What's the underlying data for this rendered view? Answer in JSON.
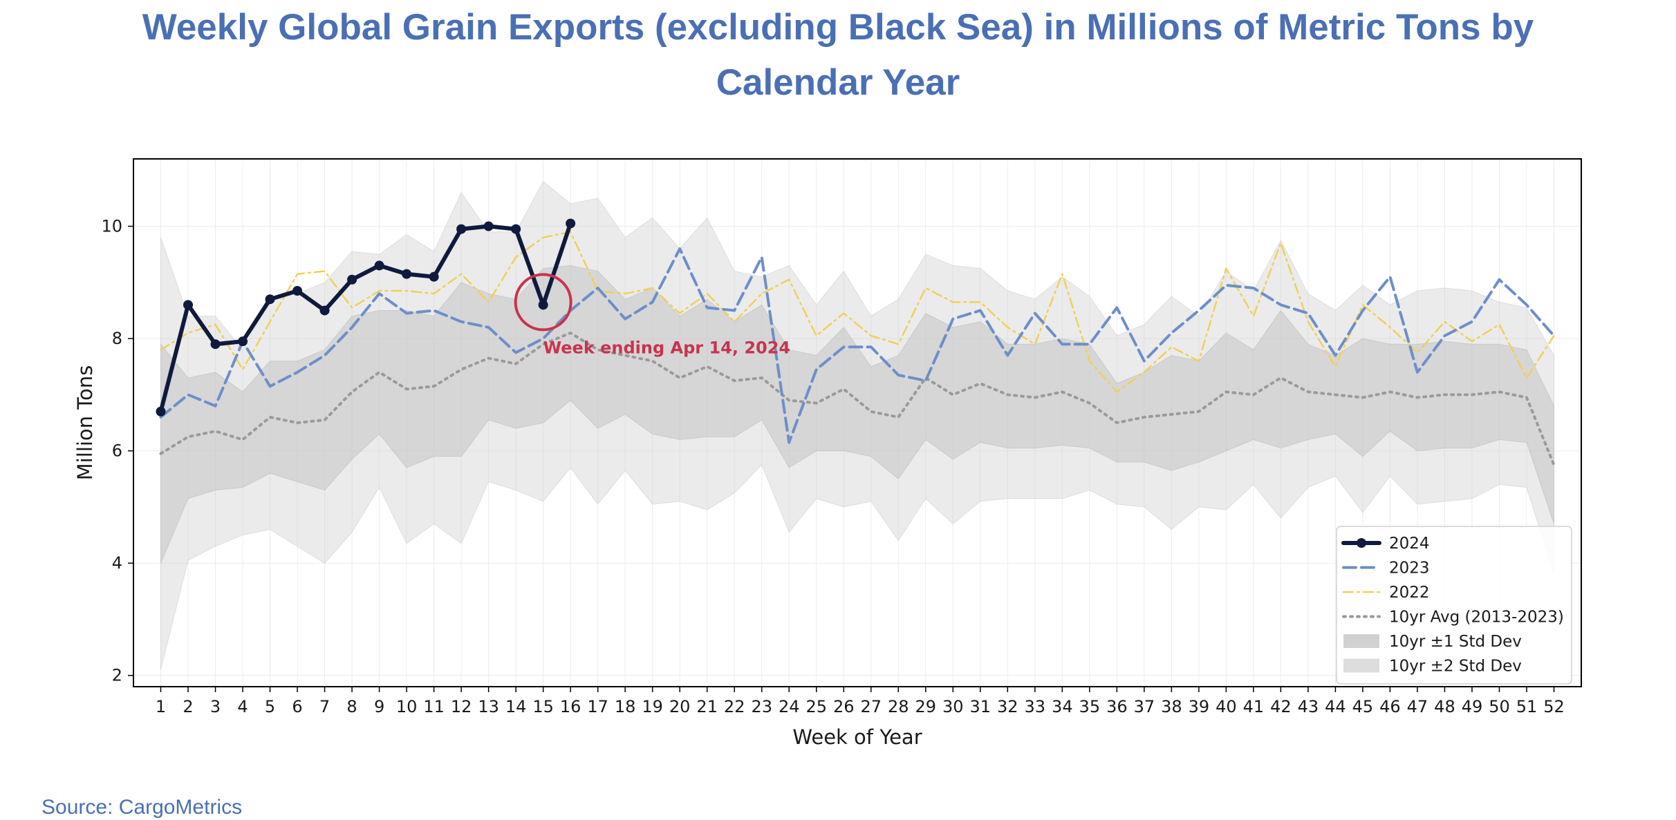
{
  "chart_data": {
    "type": "line",
    "title_line1": "Weekly Global Grain Exports (excluding Black Sea) in Millions of Metric Tons by",
    "title_line2": "Calendar Year",
    "xlabel": "Week of Year",
    "ylabel": "Million Tons",
    "xlim": [
      0,
      53
    ],
    "ylim": [
      1.8,
      11.2
    ],
    "yticks": [
      2,
      4,
      6,
      8,
      10
    ],
    "grid": true,
    "legend_position": "bottom-right",
    "weeks": [
      1,
      2,
      3,
      4,
      5,
      6,
      7,
      8,
      9,
      10,
      11,
      12,
      13,
      14,
      15,
      16,
      17,
      18,
      19,
      20,
      21,
      22,
      23,
      24,
      25,
      26,
      27,
      28,
      29,
      30,
      31,
      32,
      33,
      34,
      35,
      36,
      37,
      38,
      39,
      40,
      41,
      42,
      43,
      44,
      45,
      46,
      47,
      48,
      49,
      50,
      51,
      52
    ],
    "series": [
      {
        "name": "2024",
        "color": "#0f1a3c",
        "values": [
          6.7,
          8.6,
          7.9,
          7.95,
          8.7,
          8.85,
          8.5,
          9.05,
          9.3,
          9.15,
          9.1,
          9.95,
          10.0,
          9.95,
          8.6,
          10.05
        ]
      },
      {
        "name": "2023",
        "color": "#6d8fc8",
        "values": [
          6.6,
          7.0,
          6.8,
          7.95,
          7.15,
          7.4,
          7.7,
          8.2,
          8.8,
          8.45,
          8.5,
          8.3,
          8.2,
          7.75,
          8.0,
          8.5,
          8.9,
          8.35,
          8.65,
          9.6,
          8.55,
          8.5,
          9.45,
          6.15,
          7.45,
          7.85,
          7.85,
          7.35,
          7.25,
          8.35,
          8.5,
          7.7,
          8.45,
          7.9,
          7.9,
          8.55,
          7.6,
          8.1,
          8.5,
          8.95,
          8.9,
          8.6,
          8.45,
          7.7,
          8.5,
          9.1,
          7.4,
          8.05,
          8.3,
          9.05,
          8.6,
          8.05
        ]
      },
      {
        "name": "2022",
        "color": "#f2cf5b",
        "values": [
          7.8,
          8.1,
          8.25,
          7.45,
          8.3,
          9.15,
          9.2,
          8.55,
          8.85,
          8.85,
          8.8,
          9.15,
          8.65,
          9.45,
          9.8,
          9.9,
          8.85,
          8.8,
          8.9,
          8.45,
          8.8,
          8.3,
          8.8,
          9.05,
          8.05,
          8.45,
          8.05,
          7.9,
          8.9,
          8.65,
          8.65,
          8.2,
          7.9,
          9.15,
          7.6,
          7.05,
          7.4,
          7.85,
          7.6,
          9.25,
          8.4,
          9.7,
          8.3,
          7.5,
          8.6,
          8.2,
          7.75,
          8.3,
          7.95,
          8.25,
          7.3,
          8.05
        ]
      },
      {
        "name": "10yr Avg (2013-2023)",
        "color": "#9a9a9a",
        "values": [
          5.95,
          6.25,
          6.35,
          6.2,
          6.6,
          6.5,
          6.55,
          7.05,
          7.4,
          7.1,
          7.15,
          7.45,
          7.65,
          7.55,
          7.9,
          8.1,
          7.8,
          7.7,
          7.6,
          7.3,
          7.5,
          7.25,
          7.3,
          6.9,
          6.85,
          7.1,
          6.7,
          6.6,
          7.3,
          7.0,
          7.2,
          7.0,
          6.95,
          7.05,
          6.85,
          6.5,
          6.6,
          6.65,
          6.7,
          7.05,
          7.0,
          7.3,
          7.05,
          7.0,
          6.95,
          7.05,
          6.95,
          7.0,
          7.0,
          7.05,
          6.95,
          5.75
        ]
      }
    ],
    "bands": [
      {
        "name": "10yr ±1 Std Dev",
        "color": "#bdbdbd",
        "opacity": 0.45,
        "upper": [
          7.9,
          7.3,
          7.4,
          7.05,
          7.6,
          7.6,
          7.8,
          8.4,
          8.5,
          8.5,
          8.4,
          9.0,
          8.8,
          8.7,
          9.25,
          9.3,
          9.2,
          8.7,
          8.9,
          8.4,
          8.7,
          8.3,
          8.6,
          7.8,
          7.7,
          8.2,
          7.5,
          7.7,
          8.45,
          8.2,
          8.3,
          7.9,
          7.9,
          8.0,
          7.9,
          7.2,
          7.4,
          7.7,
          7.6,
          8.1,
          7.8,
          8.5,
          7.9,
          7.7,
          8.0,
          7.9,
          7.9,
          7.95,
          7.9,
          7.9,
          7.8,
          6.8
        ],
        "lower": [
          4.0,
          5.15,
          5.3,
          5.35,
          5.6,
          5.45,
          5.3,
          5.85,
          6.3,
          5.7,
          5.9,
          5.9,
          6.55,
          6.4,
          6.5,
          6.9,
          6.4,
          6.65,
          6.3,
          6.2,
          6.25,
          6.25,
          6.55,
          5.7,
          6.0,
          6.0,
          5.9,
          5.5,
          6.2,
          5.85,
          6.15,
          6.05,
          6.05,
          6.1,
          6.05,
          5.8,
          5.8,
          5.65,
          5.8,
          6.0,
          6.2,
          6.05,
          6.2,
          6.3,
          5.9,
          6.35,
          6.0,
          6.05,
          6.05,
          6.2,
          6.15,
          4.7
        ]
      },
      {
        "name": "10yr ±2 Std Dev",
        "color": "#cfcfcf",
        "opacity": 0.42,
        "upper": [
          9.8,
          8.4,
          8.4,
          7.8,
          8.7,
          8.8,
          9.0,
          9.55,
          9.5,
          9.85,
          9.55,
          10.6,
          9.9,
          9.9,
          10.8,
          10.4,
          10.5,
          9.8,
          10.15,
          9.6,
          10.15,
          9.2,
          9.1,
          9.3,
          8.6,
          9.2,
          8.4,
          8.7,
          9.5,
          9.3,
          9.25,
          8.85,
          8.7,
          9.1,
          8.75,
          8.05,
          8.25,
          8.75,
          8.4,
          9.2,
          8.85,
          9.75,
          8.8,
          8.5,
          8.95,
          8.6,
          8.85,
          8.9,
          8.85,
          8.65,
          8.55,
          7.7
        ],
        "lower": [
          2.1,
          4.05,
          4.3,
          4.5,
          4.6,
          4.3,
          4.0,
          4.55,
          5.35,
          4.35,
          4.7,
          4.35,
          5.45,
          5.3,
          5.1,
          5.7,
          5.05,
          5.65,
          5.05,
          5.1,
          4.95,
          5.25,
          5.75,
          4.55,
          5.15,
          5.0,
          5.1,
          4.4,
          5.15,
          4.7,
          5.1,
          5.15,
          5.15,
          5.15,
          5.3,
          5.05,
          5.0,
          4.6,
          5.0,
          4.95,
          5.4,
          4.8,
          5.35,
          5.55,
          4.9,
          5.55,
          5.05,
          5.1,
          5.15,
          5.4,
          5.35,
          3.8
        ]
      }
    ],
    "annotation": {
      "text": "Week ending Apr 14, 2024",
      "week": 15,
      "value": 8.6,
      "color": "#c8334e"
    },
    "legend": [
      "2024",
      "2023",
      "2022",
      "10yr Avg (2013-2023)",
      "10yr ±1 Std Dev",
      "10yr ±2 Std Dev"
    ]
  },
  "source": "Source: CargoMetrics"
}
